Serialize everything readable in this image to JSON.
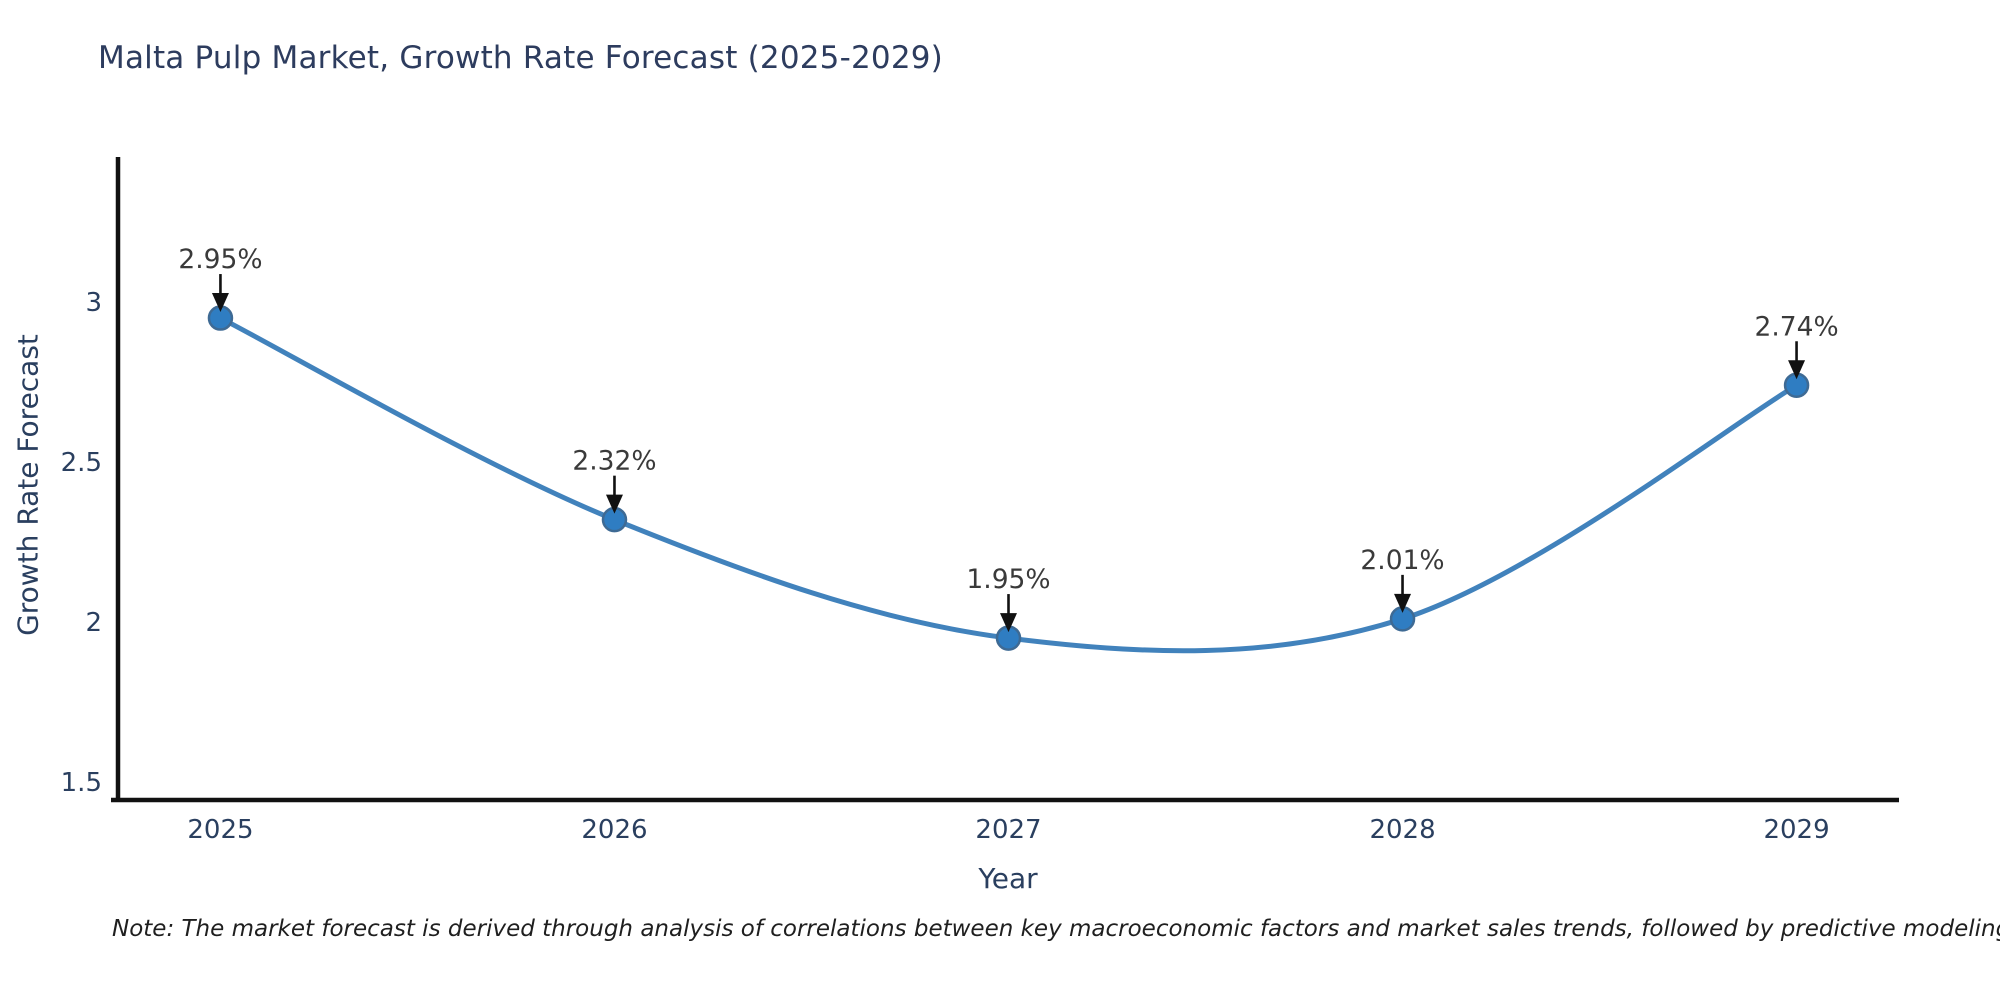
{
  "chart": {
    "title": "Malta Pulp Market, Growth Rate Forecast (2025-2029)",
    "note": "Note: The market forecast is derived through analysis of correlations between key macroeconomic factors and market sales trends, followed by predictive modeling to project future sales"
  },
  "chart_data": {
    "type": "line",
    "title": "Malta Pulp Market, Growth Rate Forecast (2025-2029)",
    "xlabel": "Year",
    "ylabel": "Growth Rate Forecast",
    "x": [
      2025,
      2026,
      2027,
      2028,
      2029
    ],
    "values": [
      2.95,
      2.32,
      1.95,
      2.01,
      2.74
    ],
    "point_labels": [
      "2.95%",
      "2.32%",
      "1.95%",
      "2.01%",
      "2.74%"
    ],
    "xticks": [
      2025,
      2026,
      2027,
      2028,
      2029
    ],
    "xtick_labels": [
      "2025",
      "2026",
      "2027",
      "2028",
      "2029"
    ],
    "yticks": [
      1.5,
      2,
      2.5,
      3
    ],
    "ytick_labels": [
      "1.5",
      "2",
      "2.5",
      "3"
    ],
    "xlim": [
      2024.74,
      2029.26
    ],
    "ylim": [
      1.444,
      3.447
    ],
    "grid": false,
    "legend": "none",
    "line_shape": "spline",
    "annotation_style": "label-with-down-arrow",
    "colors": {
      "line": "#4182bc",
      "marker_fill": "#2f7dc2",
      "marker_edge": "#3e6a94",
      "axis_line": "#111111",
      "tick_text": "#2a3f5f",
      "annotation_text": "#3a3a3a",
      "arrow": "#111111",
      "title_text": "#2d3c5e",
      "background": "#ffffff"
    }
  }
}
